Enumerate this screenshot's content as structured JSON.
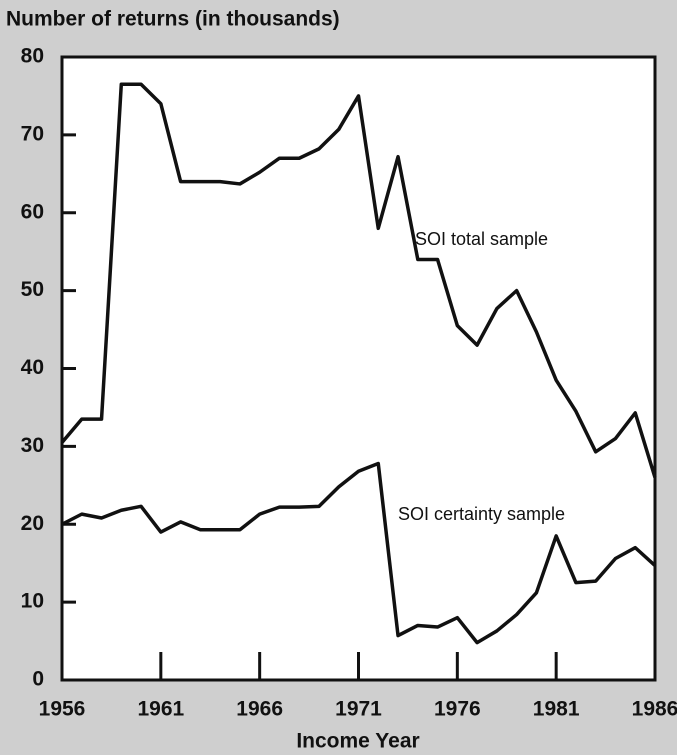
{
  "chart_data": {
    "type": "line",
    "title": "Number of returns (in thousands)",
    "x_label": "Income Year",
    "x": [
      1956,
      1957,
      1958,
      1959,
      1960,
      1961,
      1962,
      1963,
      1964,
      1965,
      1966,
      1967,
      1968,
      1969,
      1970,
      1971,
      1972,
      1973,
      1974,
      1975,
      1976,
      1977,
      1978,
      1979,
      1980,
      1981,
      1982,
      1983,
      1984,
      1985,
      1986
    ],
    "series": [
      {
        "name": "SOI total sample",
        "color": "#111111",
        "values": [
          30.5,
          33.5,
          33.5,
          76.5,
          76.5,
          74,
          64,
          64,
          64,
          63.7,
          65.2,
          67,
          67,
          68.2,
          70.7,
          75,
          58,
          67.2,
          54,
          54,
          45.5,
          43,
          47.7,
          50,
          44.7,
          38.5,
          34.5,
          29.3,
          31,
          34.3,
          26
        ]
      },
      {
        "name": "SOI certainty sample",
        "color": "#111111",
        "values": [
          20,
          21.3,
          20.8,
          21.8,
          22.3,
          19,
          20.3,
          19.3,
          19.3,
          19.3,
          21.3,
          22.2,
          22.2,
          22.3,
          24.8,
          26.8,
          27.8,
          5.7,
          7,
          6.8,
          8,
          4.8,
          6.3,
          8.4,
          11.2,
          18.5,
          12.5,
          12.7,
          15.6,
          17,
          14.7
        ]
      }
    ],
    "xlim": [
      1956,
      1986
    ],
    "xticks": [
      1956,
      1961,
      1966,
      1971,
      1976,
      1981,
      1986
    ],
    "ylim": [
      0,
      80
    ],
    "yticks": [
      0,
      10,
      20,
      30,
      40,
      50,
      60,
      70,
      80
    ],
    "grid": false
  }
}
